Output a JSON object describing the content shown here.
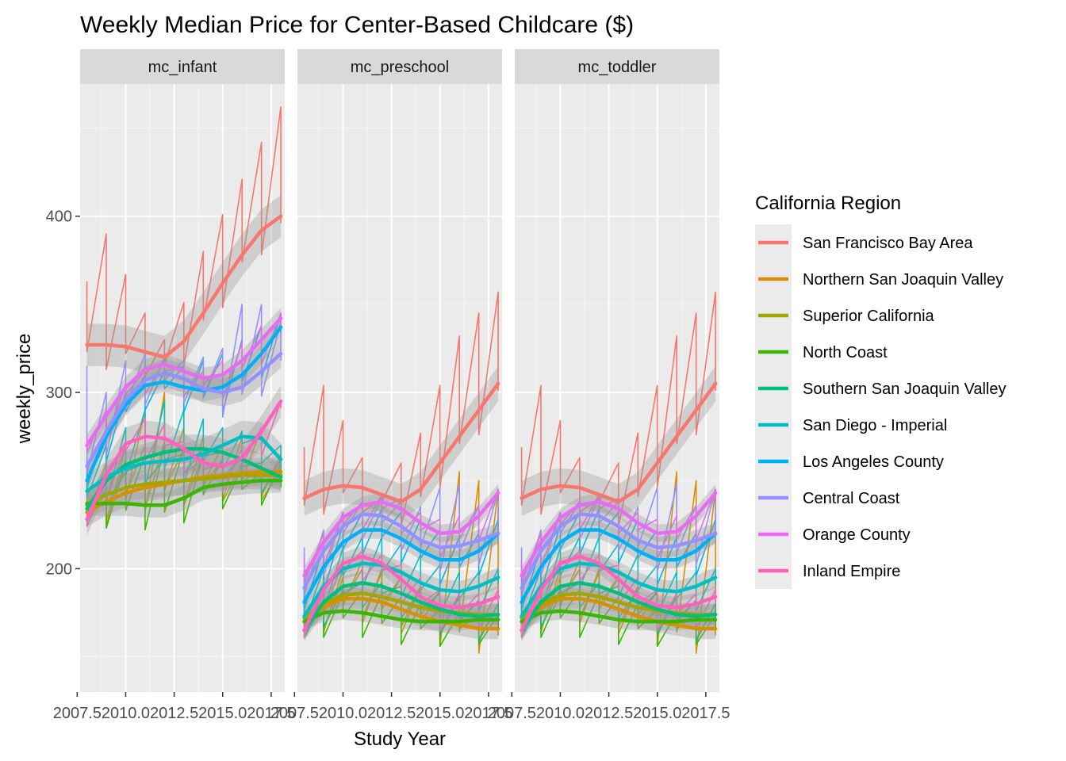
{
  "chart_data": {
    "type": "line",
    "title": "Weekly Median Price for Center-Based Childcare ($)",
    "xlabel": "Study Year",
    "ylabel": "weekly_price",
    "xlim": [
      2008,
      2018
    ],
    "ylim": [
      130,
      475
    ],
    "x_ticks": [
      2007.5,
      2010.0,
      2012.5,
      2015.0,
      2017.5
    ],
    "x_tick_labels": [
      "2007.5",
      "2010.0",
      "2012.5",
      "2015.0",
      "2017.5"
    ],
    "y_ticks": [
      200,
      300,
      400
    ],
    "y_tick_labels": [
      "200",
      "300",
      "400"
    ],
    "grid": true,
    "smoothing": "loess trend per region with grey confidence band",
    "legend": {
      "title": "California Region",
      "position": "right",
      "entries": [
        {
          "label": "San Francisco Bay Area",
          "color": "#F8766D"
        },
        {
          "label": "Northern San Joaquin Valley",
          "color": "#D89000"
        },
        {
          "label": "Superior California",
          "color": "#A3A500"
        },
        {
          "label": "North Coast",
          "color": "#39B600"
        },
        {
          "label": "Southern San Joaquin Valley",
          "color": "#00BF7D"
        },
        {
          "label": "San Diego - Imperial",
          "color": "#00BFC4"
        },
        {
          "label": "Los Angeles County",
          "color": "#00B0F6"
        },
        {
          "label": "Central Coast",
          "color": "#9590FF"
        },
        {
          "label": "Orange County",
          "color": "#E76BF3"
        },
        {
          "label": "Inland Empire",
          "color": "#FF62BC"
        }
      ]
    },
    "years": [
      2008,
      2009,
      2010,
      2011,
      2012,
      2013,
      2014,
      2015,
      2016,
      2017,
      2018
    ],
    "facets": [
      {
        "label": "mc_infant",
        "series": [
          {
            "name": "San Francisco Bay Area",
            "max": [
              363,
              390,
              367,
              345,
              330,
              351,
              380,
              401,
              421,
              442,
              462
            ],
            "trend": [
              327,
              327,
              326,
              323,
              320,
              329,
              345,
              362,
              378,
              392,
              400
            ],
            "band": 12
          },
          {
            "name": "Northern San Joaquin Valley",
            "max": [
              245,
              260,
              270,
              290,
              300,
              280,
              275,
              270,
              275,
              280,
              265
            ],
            "trend": [
              232,
              238,
              243,
              246,
              248,
              250,
              252,
              253,
              254,
              255,
              255
            ],
            "band": 8
          },
          {
            "name": "Superior California",
            "max": [
              248,
              255,
              262,
              270,
              272,
              268,
              265,
              262,
              260,
              258,
              256
            ],
            "trend": [
              236,
              242,
              246,
              248,
              249,
              250,
              251,
              252,
              253,
              253,
              253
            ],
            "band": 8
          },
          {
            "name": "North Coast",
            "max": [
              235,
              250,
              260,
              265,
              270,
              268,
              265,
              262,
              258,
              255,
              260
            ],
            "trend": [
              237,
              237,
              237,
              236,
              236,
              240,
              246,
              248,
              249,
              250,
              250
            ],
            "band": 7
          },
          {
            "name": "Southern San Joaquin Valley",
            "max": [
              230,
              245,
              255,
              260,
              262,
              265,
              268,
              266,
              263,
              260,
              262
            ],
            "trend": [
              234,
              250,
              259,
              263,
              266,
              268,
              268,
              266,
              262,
              257,
              252
            ],
            "band": 8
          },
          {
            "name": "San Diego - Imperial",
            "max": [
              255,
              270,
              280,
              290,
              295,
              290,
              285,
              280,
              278,
              275,
              270
            ],
            "trend": [
              244,
              252,
              257,
              260,
              261,
              262,
              265,
              270,
              275,
              274,
              262
            ],
            "band": 9
          },
          {
            "name": "Los Angeles County",
            "max": [
              262,
              280,
              300,
              310,
              312,
              315,
              318,
              322,
              330,
              338,
              345
            ],
            "trend": [
              250,
              275,
              293,
              304,
              306,
              303,
              301,
              303,
              310,
              322,
              337
            ],
            "band": 6
          },
          {
            "name": "Central Coast",
            "max": [
              315,
              300,
              318,
              322,
              320,
              318,
              320,
              325,
              350,
              350,
              340
            ],
            "trend": [
              258,
              278,
              296,
              307,
              311,
              308,
              302,
              300,
              303,
              312,
              322
            ],
            "band": 8
          },
          {
            "name": "Orange County",
            "max": [
              275,
              290,
              305,
              312,
              318,
              315,
              312,
              318,
              328,
              338,
              345
            ],
            "trend": [
              270,
              287,
              303,
              313,
              316,
              312,
              308,
              310,
              318,
              330,
              342
            ],
            "band": 6
          },
          {
            "name": "Inland Empire",
            "max": [
              230,
              250,
              270,
              285,
              282,
              272,
              262,
              260,
              268,
              280,
              295
            ],
            "trend": [
              228,
              253,
              271,
              275,
              274,
              268,
              260,
              258,
              263,
              278,
              295
            ],
            "band": 9
          }
        ]
      },
      {
        "label": "mc_preschool",
        "series": [
          {
            "name": "San Francisco Bay Area",
            "max": [
              269,
              304,
              284,
              263,
              240,
              260,
              277,
              304,
              332,
              345,
              357
            ],
            "trend": [
              240,
              245,
              247,
              246,
              242,
              238,
              245,
              260,
              275,
              290,
              305
            ],
            "band": 10
          },
          {
            "name": "Northern San Joaquin Valley",
            "max": [
              180,
              190,
              200,
              205,
              200,
              195,
              190,
              188,
              255,
              250,
              245
            ],
            "trend": [
              170,
              178,
              183,
              183,
              181,
              177,
              173,
              170,
              168,
              166,
              166
            ],
            "band": 6
          },
          {
            "name": "Superior California",
            "max": [
              178,
              188,
              195,
              200,
              198,
              195,
              190,
              187,
              185,
              182,
              180
            ],
            "trend": [
              172,
              180,
              185,
              186,
              184,
              181,
              178,
              176,
              175,
              174,
              174
            ],
            "band": 6
          },
          {
            "name": "North Coast",
            "max": [
              175,
              182,
              186,
              188,
              186,
              184,
              180,
              177,
              175,
              174,
              174
            ],
            "trend": [
              170,
              175,
              176,
              175,
              173,
              171,
              170,
              170,
              170,
              171,
              171
            ],
            "band": 5
          },
          {
            "name": "Southern San Joaquin Valley",
            "max": [
              170,
              180,
              188,
              192,
              192,
              190,
              188,
              186,
              184,
              182,
              180
            ],
            "trend": [
              165,
              181,
              190,
              192,
              190,
              186,
              181,
              177,
              174,
              173,
              174
            ],
            "band": 6
          },
          {
            "name": "San Diego - Imperial",
            "max": [
              188,
              200,
              212,
              218,
              218,
              214,
              208,
              202,
              198,
              198,
              200
            ],
            "trend": [
              173,
              190,
              200,
              203,
              202,
              198,
              192,
              188,
              187,
              190,
              195
            ],
            "band": 6
          },
          {
            "name": "Los Angeles County",
            "max": [
              195,
              212,
              225,
              232,
              234,
              232,
              228,
              222,
              218,
              220,
              228
            ],
            "trend": [
              181,
              201,
              215,
              222,
              222,
              217,
              210,
              205,
              205,
              210,
              220
            ],
            "band": 5
          },
          {
            "name": "Central Coast",
            "max": [
              212,
              222,
              232,
              238,
              240,
              238,
              235,
              246,
              248,
              236,
              245
            ],
            "trend": [
              189,
              210,
              224,
              231,
              230,
              224,
              216,
              212,
              213,
              216,
              220
            ],
            "band": 6
          },
          {
            "name": "Orange County",
            "max": [
              205,
              220,
              232,
              238,
              242,
              240,
              232,
              228,
              230,
              236,
              245
            ],
            "trend": [
              196,
              215,
              229,
              236,
              238,
              234,
              226,
              220,
              221,
              230,
              243
            ],
            "band": 5
          },
          {
            "name": "Inland Empire",
            "max": [
              172,
              190,
              205,
              210,
              208,
              202,
              195,
              188,
              186,
              186,
              188
            ],
            "trend": [
              165,
              188,
              203,
              207,
              203,
              194,
              184,
              179,
              178,
              180,
              184
            ],
            "band": 6
          }
        ]
      },
      {
        "label": "mc_toddler",
        "series": [
          {
            "name": "San Francisco Bay Area",
            "max": [
              269,
              304,
              284,
              263,
              240,
              260,
              277,
              304,
              332,
              345,
              357
            ],
            "trend": [
              240,
              245,
              247,
              246,
              242,
              238,
              245,
              260,
              275,
              290,
              305
            ],
            "band": 10
          },
          {
            "name": "Northern San Joaquin Valley",
            "max": [
              180,
              190,
              200,
              205,
              200,
              195,
              190,
              188,
              255,
              250,
              245
            ],
            "trend": [
              170,
              178,
              183,
              183,
              181,
              177,
              173,
              170,
              168,
              166,
              166
            ],
            "band": 6
          },
          {
            "name": "Superior California",
            "max": [
              178,
              188,
              195,
              200,
              198,
              195,
              190,
              187,
              185,
              182,
              180
            ],
            "trend": [
              172,
              180,
              185,
              186,
              184,
              181,
              178,
              176,
              175,
              174,
              174
            ],
            "band": 6
          },
          {
            "name": "North Coast",
            "max": [
              175,
              182,
              186,
              188,
              186,
              184,
              180,
              177,
              175,
              174,
              174
            ],
            "trend": [
              170,
              175,
              176,
              175,
              173,
              171,
              170,
              170,
              170,
              171,
              171
            ],
            "band": 5
          },
          {
            "name": "Southern San Joaquin Valley",
            "max": [
              170,
              180,
              188,
              192,
              192,
              190,
              188,
              186,
              184,
              182,
              180
            ],
            "trend": [
              165,
              181,
              190,
              192,
              190,
              186,
              181,
              177,
              174,
              173,
              174
            ],
            "band": 6
          },
          {
            "name": "San Diego - Imperial",
            "max": [
              188,
              200,
              212,
              218,
              218,
              214,
              208,
              202,
              198,
              198,
              200
            ],
            "trend": [
              173,
              190,
              200,
              203,
              202,
              198,
              192,
              188,
              187,
              190,
              195
            ],
            "band": 6
          },
          {
            "name": "Los Angeles County",
            "max": [
              195,
              212,
              225,
              232,
              234,
              232,
              228,
              222,
              218,
              220,
              228
            ],
            "trend": [
              181,
              201,
              215,
              222,
              222,
              217,
              210,
              205,
              205,
              210,
              220
            ],
            "band": 5
          },
          {
            "name": "Central Coast",
            "max": [
              212,
              222,
              232,
              238,
              240,
              238,
              235,
              246,
              248,
              236,
              245
            ],
            "trend": [
              189,
              210,
              224,
              231,
              230,
              224,
              216,
              212,
              213,
              216,
              220
            ],
            "band": 6
          },
          {
            "name": "Orange County",
            "max": [
              205,
              220,
              232,
              238,
              242,
              240,
              232,
              228,
              230,
              236,
              245
            ],
            "trend": [
              196,
              215,
              229,
              236,
              238,
              234,
              226,
              220,
              221,
              230,
              243
            ],
            "band": 5
          },
          {
            "name": "Inland Empire",
            "max": [
              172,
              190,
              205,
              210,
              208,
              202,
              195,
              188,
              186,
              186,
              188
            ],
            "trend": [
              165,
              188,
              203,
              207,
              203,
              194,
              184,
              179,
              178,
              180,
              184
            ],
            "band": 6
          }
        ]
      }
    ]
  }
}
